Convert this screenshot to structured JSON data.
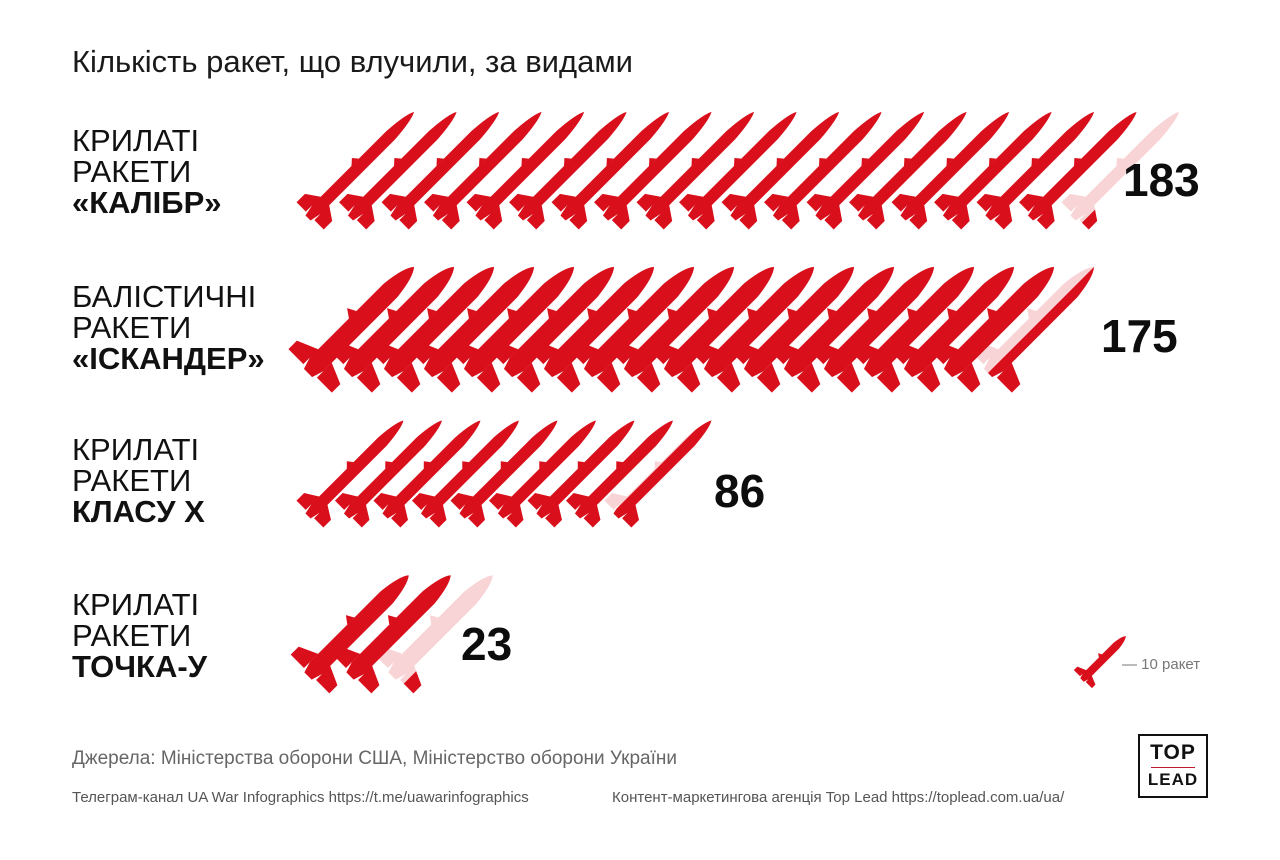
{
  "title": "Кількість ракет, що влучили, за видами",
  "colors": {
    "rocket": "#d9101c",
    "text": "#111111",
    "muted": "#777777"
  },
  "rows": [
    {
      "line1": "КРИЛАТІ",
      "line2": "РАКЕТИ",
      "line3": "«КАЛІБР»",
      "value_label": "183"
    },
    {
      "line1": "БАЛІСТИЧНІ",
      "line2": "РАКЕТИ",
      "line3": "«ІСКАНДЕР»",
      "value_label": "175"
    },
    {
      "line1": "КРИЛАТІ",
      "line2": "РАКЕТИ",
      "line3": "КЛАСУ Х",
      "value_label": "86"
    },
    {
      "line1": "КРИЛАТІ",
      "line2": "РАКЕТИ",
      "line3": "ТОЧКА-У",
      "value_label": "23"
    }
  ],
  "chart_data": {
    "type": "bar",
    "title": "Кількість ракет, що влучили, за видами",
    "categories": [
      "КРИЛАТІ РАКЕТИ «КАЛІБР»",
      "БАЛІСТИЧНІ РАКЕТИ «ІСКАНДЕР»",
      "КРИЛАТІ РАКЕТИ КЛАСУ Х",
      "КРИЛАТІ РАКЕТИ ТОЧКА-У"
    ],
    "values": [
      183,
      175,
      86,
      23
    ],
    "unit_per_icon": 10,
    "legend": {
      "label": "— 10 ракет",
      "position": "bottom-right"
    }
  },
  "legend": {
    "label": "— 10 ракет"
  },
  "sources": "Джерела: Міністерства оборони США, Міністерство оборони України",
  "footer": {
    "left": "Телеграм-канал UA War Infographics https://t.me/uawarinfographics",
    "right": "Контент-маркетингова агенція Top Lead https://toplead.com.ua/ua/"
  },
  "logo": {
    "line1": "TOP",
    "line2": "LEAD"
  }
}
